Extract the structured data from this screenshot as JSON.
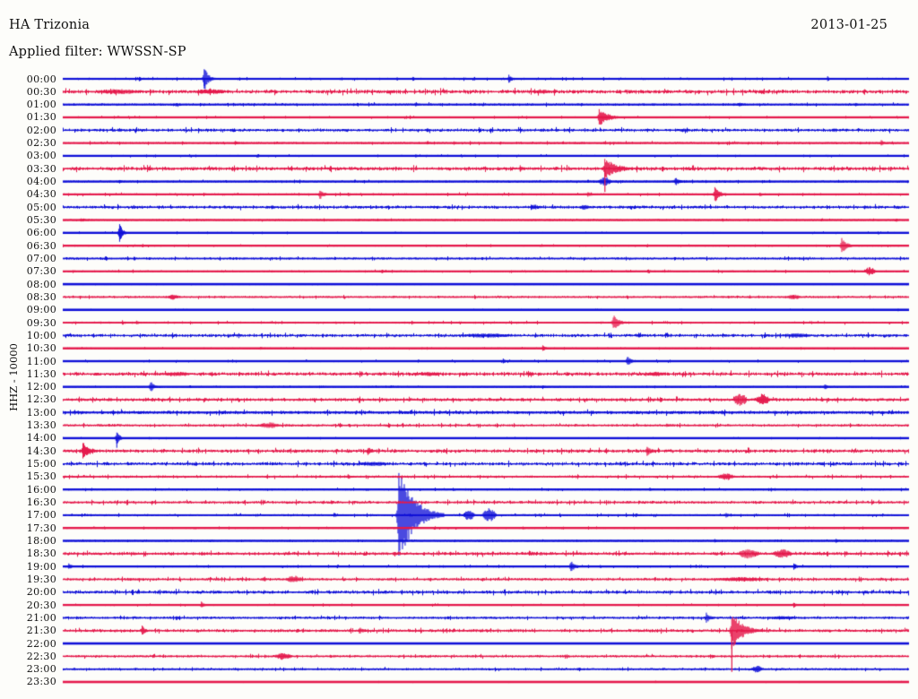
{
  "chart_data": {
    "type": "line",
    "plot_kind": "helicorder-seismogram",
    "title": "HA Trizonia",
    "date": "2013-01-25",
    "filter_line": "Applied filter: WWSSN-SP",
    "y_axis_label": "HHZ - 10000",
    "minutes_per_row": 30,
    "x_axis": {
      "row_start_first": "00:00",
      "row_start_last": "23:30",
      "step_minutes": 30
    },
    "legend": "none",
    "grid": "off",
    "colors": {
      "trace_blue": "#0f10d8",
      "trace_red": "#e51a4c",
      "background": "#fdfdfa",
      "text": "#111111"
    },
    "rows": [
      {
        "t": "00:00",
        "c": "b",
        "lw": 2.2,
        "n": 1.0,
        "ev": [
          {
            "min": 2.7,
            "amp": 3,
            "dur": 0.3
          },
          {
            "min": 5.0,
            "amp": 14,
            "dur": 0.5,
            "shape": "spike",
            "tail": 8
          },
          {
            "min": 12.4,
            "amp": 3,
            "dur": 0.3
          },
          {
            "min": 15.8,
            "amp": 5,
            "dur": 0.35,
            "shape": "spike"
          },
          {
            "min": 27.1,
            "amp": 3,
            "dur": 0.3
          }
        ]
      },
      {
        "t": "00:30",
        "c": "r",
        "lw": 1.2,
        "n": 1.9,
        "ev": [
          {
            "min": 2.0,
            "amp": 3,
            "dur": 2.0,
            "shape": "spindle"
          },
          {
            "min": 5.2,
            "amp": 3,
            "dur": 1.5,
            "shape": "spindle"
          },
          {
            "min": 17.0,
            "amp": 2.5,
            "dur": 0.8,
            "shape": "spindle"
          }
        ]
      },
      {
        "t": "01:00",
        "c": "b",
        "lw": 2.0,
        "n": 1.1,
        "ev": [
          {
            "min": 4.0,
            "amp": 2.5,
            "dur": 0.3
          },
          {
            "min": 12.5,
            "amp": 2.5,
            "dur": 0.3
          },
          {
            "min": 24.0,
            "amp": 2,
            "dur": 0.4,
            "shape": "spindle"
          },
          {
            "min": 28.1,
            "amp": 2.5,
            "dur": 0.3
          }
        ]
      },
      {
        "t": "01:30",
        "c": "r",
        "lw": 2.3,
        "n": 0.8,
        "ev": [
          {
            "min": 12.3,
            "amp": 2.5,
            "dur": 0.3
          },
          {
            "min": 19.0,
            "amp": 10,
            "dur": 1.1,
            "shape": "spike"
          }
        ]
      },
      {
        "t": "02:00",
        "c": "b",
        "lw": 1.2,
        "n": 1.5,
        "ev": [
          {
            "min": 2.0,
            "amp": 2.5,
            "dur": 0.4
          },
          {
            "min": 12.9,
            "amp": 3,
            "dur": 0.3
          },
          {
            "min": 22.0,
            "amp": 2,
            "dur": 0.5,
            "shape": "spindle"
          }
        ]
      },
      {
        "t": "02:30",
        "c": "r",
        "lw": 2.1,
        "n": 1.0,
        "ev": [
          {
            "min": 6.1,
            "amp": 3,
            "dur": 0.4,
            "shape": "spike"
          },
          {
            "min": 12.9,
            "amp": 2.5,
            "dur": 0.3
          },
          {
            "min": 29.0,
            "amp": 4,
            "dur": 0.3,
            "shape": "spike"
          }
        ]
      },
      {
        "t": "03:00",
        "c": "b",
        "lw": 2.3,
        "n": 0.8,
        "ev": [
          {
            "min": 6.9,
            "amp": 2.5,
            "dur": 0.3
          },
          {
            "min": 12.5,
            "amp": 2.5,
            "dur": 0.3
          }
        ]
      },
      {
        "t": "03:30",
        "c": "r",
        "lw": 1.4,
        "n": 1.8,
        "ev": [
          {
            "min": 16.2,
            "amp": 4,
            "dur": 0.4,
            "shape": "spike"
          },
          {
            "min": 19.2,
            "amp": 13,
            "dur": 1.3,
            "shape": "spike",
            "tail": 26
          }
        ]
      },
      {
        "t": "04:00",
        "c": "b",
        "lw": 2.3,
        "n": 0.9,
        "ev": [
          {
            "min": 2.0,
            "amp": 2.5,
            "dur": 0.3
          },
          {
            "min": 19.2,
            "amp": 5,
            "dur": 0.6,
            "shape": "spindle"
          },
          {
            "min": 21.7,
            "amp": 5,
            "dur": 0.5,
            "shape": "spike"
          }
        ]
      },
      {
        "t": "04:30",
        "c": "r",
        "lw": 2.1,
        "n": 1.0,
        "ev": [
          {
            "min": 9.1,
            "amp": 6,
            "dur": 0.5,
            "shape": "spike"
          },
          {
            "min": 18.6,
            "amp": 3,
            "dur": 0.4
          },
          {
            "min": 23.1,
            "amp": 9,
            "dur": 0.6,
            "shape": "spike"
          },
          {
            "min": 24.7,
            "amp": 3,
            "dur": 0.3
          }
        ]
      },
      {
        "t": "05:00",
        "c": "b",
        "lw": 1.2,
        "n": 1.5,
        "ev": [
          {
            "min": 2.5,
            "amp": 2.5,
            "dur": 0.4
          },
          {
            "min": 7.4,
            "amp": 2.5,
            "dur": 0.4
          },
          {
            "min": 10.0,
            "amp": 2.5,
            "dur": 0.3
          },
          {
            "min": 16.7,
            "amp": 3,
            "dur": 0.4,
            "shape": "spindle"
          },
          {
            "min": 18.5,
            "amp": 3,
            "dur": 0.5,
            "shape": "spindle"
          }
        ]
      },
      {
        "t": "05:30",
        "c": "r",
        "lw": 2.3,
        "n": 0.8,
        "ev": [
          {
            "min": 0.7,
            "amp": 2.5,
            "dur": 0.3
          }
        ]
      },
      {
        "t": "06:00",
        "c": "b",
        "lw": 2.4,
        "n": 0.7,
        "ev": [
          {
            "min": 2.0,
            "amp": 12,
            "dur": 0.35,
            "shape": "spike",
            "tail": 6
          }
        ]
      },
      {
        "t": "06:30",
        "c": "r",
        "lw": 2.3,
        "n": 0.8,
        "ev": [
          {
            "min": 27.6,
            "amp": 9,
            "dur": 0.6,
            "shape": "spike"
          }
        ]
      },
      {
        "t": "07:00",
        "c": "b",
        "lw": 1.6,
        "n": 1.1,
        "ev": [
          {
            "min": 7.0,
            "amp": 1.5,
            "dur": 0.3
          }
        ]
      },
      {
        "t": "07:30",
        "c": "r",
        "lw": 2.1,
        "n": 0.9,
        "ev": [
          {
            "min": 11.3,
            "amp": 2.5,
            "dur": 0.3
          },
          {
            "min": 28.6,
            "amp": 5,
            "dur": 0.5,
            "shape": "spindle"
          }
        ]
      },
      {
        "t": "08:00",
        "c": "b",
        "lw": 2.6,
        "n": 0.5,
        "ev": [
          {
            "min": 16.0,
            "amp": 1.5,
            "dur": 0.2
          }
        ]
      },
      {
        "t": "08:30",
        "c": "r",
        "lw": 1.5,
        "n": 1.0,
        "ev": [
          {
            "min": 3.9,
            "amp": 3,
            "dur": 0.5,
            "shape": "spindle"
          },
          {
            "min": 25.9,
            "amp": 3,
            "dur": 0.6,
            "shape": "spindle"
          }
        ]
      },
      {
        "t": "09:00",
        "c": "b",
        "lw": 2.6,
        "n": 0.5,
        "ev": [
          {
            "min": 29.6,
            "amp": 2,
            "dur": 0.2
          }
        ]
      },
      {
        "t": "09:30",
        "c": "r",
        "lw": 1.9,
        "n": 1.0,
        "ev": [
          {
            "min": 2.1,
            "amp": 3,
            "dur": 0.3
          },
          {
            "min": 2.6,
            "amp": 3,
            "dur": 0.3
          },
          {
            "min": 19.5,
            "amp": 9,
            "dur": 0.7,
            "shape": "spike"
          }
        ]
      },
      {
        "t": "10:00",
        "c": "b",
        "lw": 1.2,
        "n": 1.5,
        "ev": [
          {
            "min": 15.0,
            "amp": 2.5,
            "dur": 2.5,
            "shape": "spindle"
          },
          {
            "min": 20.4,
            "amp": 3,
            "dur": 0.3
          },
          {
            "min": 26.0,
            "amp": 2.5,
            "dur": 1.5,
            "shape": "spindle"
          }
        ]
      },
      {
        "t": "10:30",
        "c": "r",
        "lw": 2.4,
        "n": 0.7,
        "ev": [
          {
            "min": 7.0,
            "amp": 2,
            "dur": 0.3
          },
          {
            "min": 17.0,
            "amp": 3.5,
            "dur": 0.4,
            "shape": "spike"
          }
        ]
      },
      {
        "t": "11:00",
        "c": "b",
        "lw": 2.4,
        "n": 0.8,
        "ev": [
          {
            "min": 15.6,
            "amp": 3,
            "dur": 0.3
          },
          {
            "min": 20.0,
            "amp": 6,
            "dur": 0.5,
            "shape": "spike"
          }
        ]
      },
      {
        "t": "11:30",
        "c": "r",
        "lw": 1.2,
        "n": 1.8,
        "ev": [
          {
            "min": 4.0,
            "amp": 2.5,
            "dur": 1.5,
            "shape": "spindle"
          },
          {
            "min": 13.0,
            "amp": 2.5,
            "dur": 1.2,
            "shape": "spindle"
          },
          {
            "min": 21.0,
            "amp": 2.5,
            "dur": 1.0,
            "shape": "spindle"
          }
        ]
      },
      {
        "t": "12:00",
        "c": "b",
        "lw": 2.4,
        "n": 0.7,
        "ev": [
          {
            "min": 3.1,
            "amp": 7,
            "dur": 0.4,
            "shape": "spike"
          },
          {
            "min": 17.0,
            "amp": 2.5,
            "dur": 0.3
          },
          {
            "min": 27.0,
            "amp": 4,
            "dur": 0.3,
            "shape": "spike"
          }
        ]
      },
      {
        "t": "12:30",
        "c": "r",
        "lw": 1.3,
        "n": 1.6,
        "ev": [
          {
            "min": 24.0,
            "amp": 8,
            "dur": 0.6,
            "shape": "spindle"
          },
          {
            "min": 24.8,
            "amp": 7,
            "dur": 0.6,
            "shape": "spindle"
          }
        ]
      },
      {
        "t": "13:00",
        "c": "b",
        "lw": 2.0,
        "n": 1.7,
        "ev": []
      },
      {
        "t": "13:30",
        "c": "r",
        "lw": 1.4,
        "n": 1.2,
        "ev": [
          {
            "min": 7.3,
            "amp": 3.5,
            "dur": 0.9,
            "shape": "spindle"
          },
          {
            "min": 21.4,
            "amp": 2.5,
            "dur": 0.4
          }
        ]
      },
      {
        "t": "14:00",
        "c": "b",
        "lw": 2.4,
        "n": 0.6,
        "ev": [
          {
            "min": 1.9,
            "amp": 11,
            "dur": 0.3,
            "shape": "spike",
            "tail": 6
          }
        ]
      },
      {
        "t": "14:30",
        "c": "r",
        "lw": 1.3,
        "n": 1.7,
        "ev": [
          {
            "min": 0.7,
            "amp": 10,
            "dur": 0.8,
            "shape": "spike"
          },
          {
            "min": 10.8,
            "amp": 5,
            "dur": 0.5,
            "shape": "spike"
          },
          {
            "min": 20.7,
            "amp": 7,
            "dur": 0.45,
            "shape": "spike"
          }
        ]
      },
      {
        "t": "15:00",
        "c": "b",
        "lw": 1.2,
        "n": 1.6,
        "ev": [
          {
            "min": 11.0,
            "amp": 2.5,
            "dur": 1.5,
            "shape": "spindle"
          }
        ]
      },
      {
        "t": "15:30",
        "c": "r",
        "lw": 1.5,
        "n": 1.2,
        "ev": [
          {
            "min": 10.1,
            "amp": 3,
            "dur": 0.4
          },
          {
            "min": 23.5,
            "amp": 4,
            "dur": 0.8,
            "shape": "spindle"
          }
        ]
      },
      {
        "t": "16:00",
        "c": "b",
        "lw": 2.3,
        "n": 0.9,
        "ev": [
          {
            "min": 20.8,
            "amp": 2.5,
            "dur": 0.3
          },
          {
            "min": 25.1,
            "amp": 2.5,
            "dur": 0.2
          }
        ]
      },
      {
        "t": "16:30",
        "c": "r",
        "lw": 1.4,
        "n": 1.4,
        "ev": [
          {
            "min": 9.5,
            "amp": 2.5,
            "dur": 0.3
          }
        ]
      },
      {
        "t": "17:00",
        "c": "b",
        "lw": 1.9,
        "n": 1.0,
        "ev": [
          {
            "min": 9.6,
            "amp": 3,
            "dur": 0.4
          },
          {
            "min": 11.9,
            "amp": 55,
            "dur": 1.6,
            "shape": "spike"
          },
          {
            "min": 14.4,
            "amp": 7,
            "dur": 0.5,
            "shape": "spindle"
          },
          {
            "min": 15.1,
            "amp": 8,
            "dur": 0.6,
            "shape": "spindle"
          },
          {
            "min": 20.3,
            "amp": 3,
            "dur": 0.3
          },
          {
            "min": 23.5,
            "amp": 3,
            "dur": 0.4
          }
        ]
      },
      {
        "t": "17:30",
        "c": "r",
        "lw": 2.4,
        "n": 0.8,
        "ev": [
          {
            "min": 16.3,
            "amp": 2.5,
            "dur": 0.3
          }
        ]
      },
      {
        "t": "18:00",
        "c": "b",
        "lw": 2.4,
        "n": 0.7,
        "ev": [
          {
            "min": 23.1,
            "amp": 2,
            "dur": 0.3
          },
          {
            "min": 27.4,
            "amp": 2.5,
            "dur": 0.3
          }
        ]
      },
      {
        "t": "18:30",
        "c": "r",
        "lw": 1.3,
        "n": 1.6,
        "ev": [
          {
            "min": 24.3,
            "amp": 6,
            "dur": 0.9,
            "shape": "spindle"
          },
          {
            "min": 25.5,
            "amp": 5,
            "dur": 0.9,
            "shape": "spindle"
          }
        ]
      },
      {
        "t": "19:00",
        "c": "b",
        "lw": 2.3,
        "n": 0.9,
        "ev": [
          {
            "min": 0.2,
            "amp": 4,
            "dur": 0.4
          },
          {
            "min": 18.0,
            "amp": 7,
            "dur": 0.5,
            "shape": "spike"
          },
          {
            "min": 25.9,
            "amp": 4,
            "dur": 0.4
          }
        ]
      },
      {
        "t": "19:30",
        "c": "r",
        "lw": 1.4,
        "n": 1.3,
        "ev": [
          {
            "min": 7.1,
            "amp": 3,
            "dur": 0.4
          },
          {
            "min": 8.2,
            "amp": 4,
            "dur": 0.8,
            "shape": "spindle"
          },
          {
            "min": 24.0,
            "amp": 2.5,
            "dur": 2.5,
            "shape": "spindle"
          }
        ]
      },
      {
        "t": "20:00",
        "c": "b",
        "lw": 1.2,
        "n": 1.6,
        "ev": []
      },
      {
        "t": "20:30",
        "c": "r",
        "lw": 2.3,
        "n": 0.8,
        "ev": [
          {
            "min": 4.9,
            "amp": 4,
            "dur": 0.4,
            "shape": "spike"
          },
          {
            "min": 25.9,
            "amp": 4,
            "dur": 0.3,
            "shape": "spike"
          }
        ]
      },
      {
        "t": "21:00",
        "c": "b",
        "lw": 1.4,
        "n": 1.2,
        "ev": [
          {
            "min": 4.0,
            "amp": 2.5,
            "dur": 0.3
          },
          {
            "min": 22.8,
            "amp": 6,
            "dur": 0.5,
            "shape": "spike"
          },
          {
            "min": 25.5,
            "amp": 2,
            "dur": 1.5,
            "shape": "spindle"
          }
        ]
      },
      {
        "t": "21:30",
        "c": "r",
        "lw": 1.3,
        "n": 1.5,
        "ev": [
          {
            "min": 2.8,
            "amp": 6,
            "dur": 0.4,
            "shape": "spike"
          },
          {
            "min": 10.5,
            "amp": 4,
            "dur": 0.6,
            "shape": "spike"
          },
          {
            "min": 23.7,
            "amp": 22,
            "dur": 1.2,
            "shape": "spike",
            "tail": 46
          }
        ]
      },
      {
        "t": "22:00",
        "c": "b",
        "lw": 2.6,
        "n": 0.4,
        "ev": []
      },
      {
        "t": "22:30",
        "c": "r",
        "lw": 1.4,
        "n": 1.2,
        "ev": [
          {
            "min": 7.8,
            "amp": 4,
            "dur": 0.8,
            "shape": "spindle"
          },
          {
            "min": 23.0,
            "amp": 2.5,
            "dur": 0.3
          }
        ]
      },
      {
        "t": "23:00",
        "c": "b",
        "lw": 1.5,
        "n": 1.1,
        "ev": [
          {
            "min": 24.6,
            "amp": 4,
            "dur": 0.5,
            "shape": "spindle"
          }
        ]
      },
      {
        "t": "23:30",
        "c": "r",
        "lw": 2.6,
        "n": 0.5,
        "ev": [
          {
            "min": 15.8,
            "amp": 1.5,
            "dur": 0.2
          },
          {
            "min": 21.0,
            "amp": 1.5,
            "dur": 0.2
          }
        ]
      }
    ]
  }
}
